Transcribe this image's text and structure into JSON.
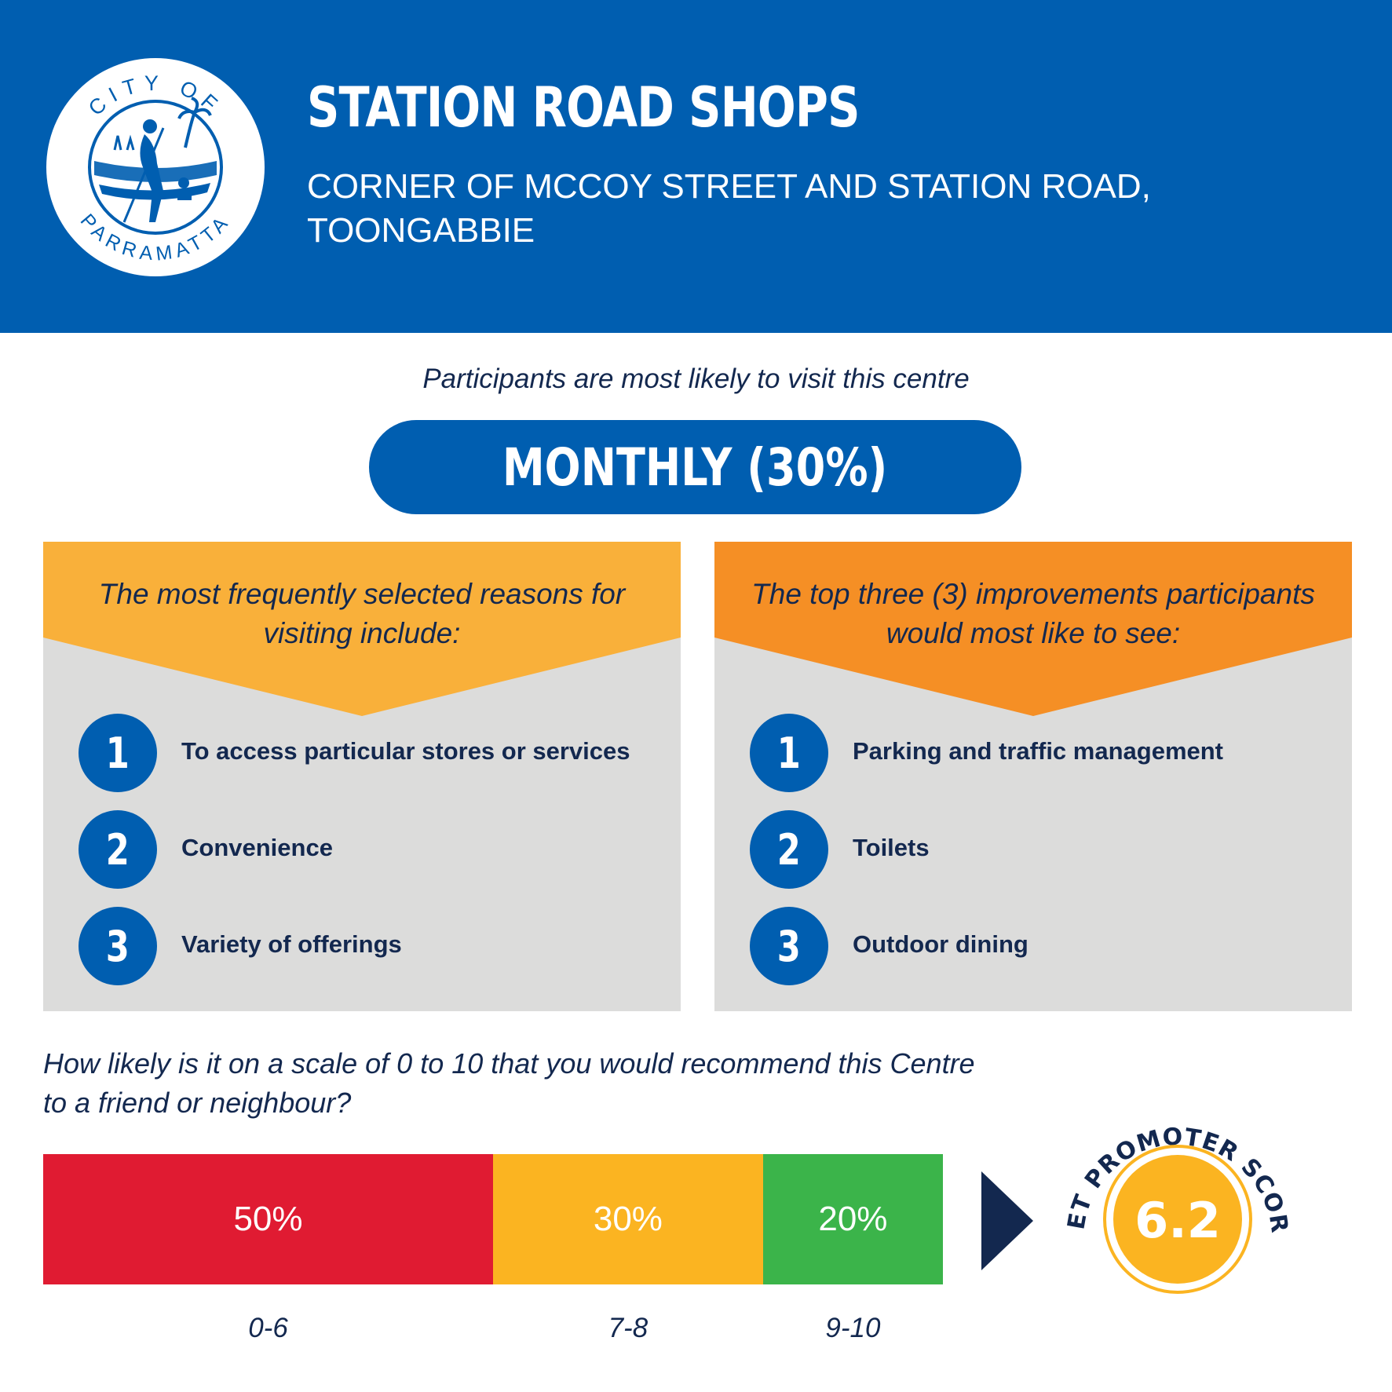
{
  "header": {
    "logo": {
      "top_text": "CITY OF",
      "bottom_text": "PARRAMATTA",
      "icon": "city-of-parramatta-seal"
    },
    "title": "STATION ROAD SHOPS",
    "subtitle": "CORNER OF MCCOY STREET AND STATION ROAD, TOONGABBIE"
  },
  "visit": {
    "intro": "Participants are most likely to visit this centre",
    "frequency": "MONTHLY (30%)"
  },
  "reasons": {
    "heading": "The most frequently selected reasons for visiting include:",
    "items": [
      {
        "number": "1",
        "label": "To access particular stores or services"
      },
      {
        "number": "2",
        "label": "Convenience"
      },
      {
        "number": "3",
        "label": "Variety of offerings"
      }
    ]
  },
  "improvements": {
    "heading": "The top three (3) improvements participants would most like to see:",
    "items": [
      {
        "number": "1",
        "label": "Parking and traffic management"
      },
      {
        "number": "2",
        "label": "Toilets"
      },
      {
        "number": "3",
        "label": "Outdoor dining"
      }
    ]
  },
  "recommend": {
    "question": "How likely is it on a scale of 0 to 10 that you would recommend this Centre to a friend or neighbour?",
    "segments": [
      {
        "range": "0-6",
        "percent": 50,
        "percent_label": "50%"
      },
      {
        "range": "7-8",
        "percent": 30,
        "percent_label": "30%"
      },
      {
        "range": "9-10",
        "percent": 20,
        "percent_label": "20%"
      }
    ],
    "nps_label": "NET PROMOTER SCORE",
    "nps_value": "6.2"
  },
  "colors": {
    "brand_blue": "#005eb0",
    "navy": "#13284f",
    "reasons_banner": "#f9b03a",
    "improvements_banner": "#f58f25",
    "panel_grey": "#dcdcdb",
    "segment_red": "#e01b32",
    "segment_yellow": "#fbb421",
    "segment_green": "#3bb44a",
    "nps_circle": "#fbb421"
  }
}
